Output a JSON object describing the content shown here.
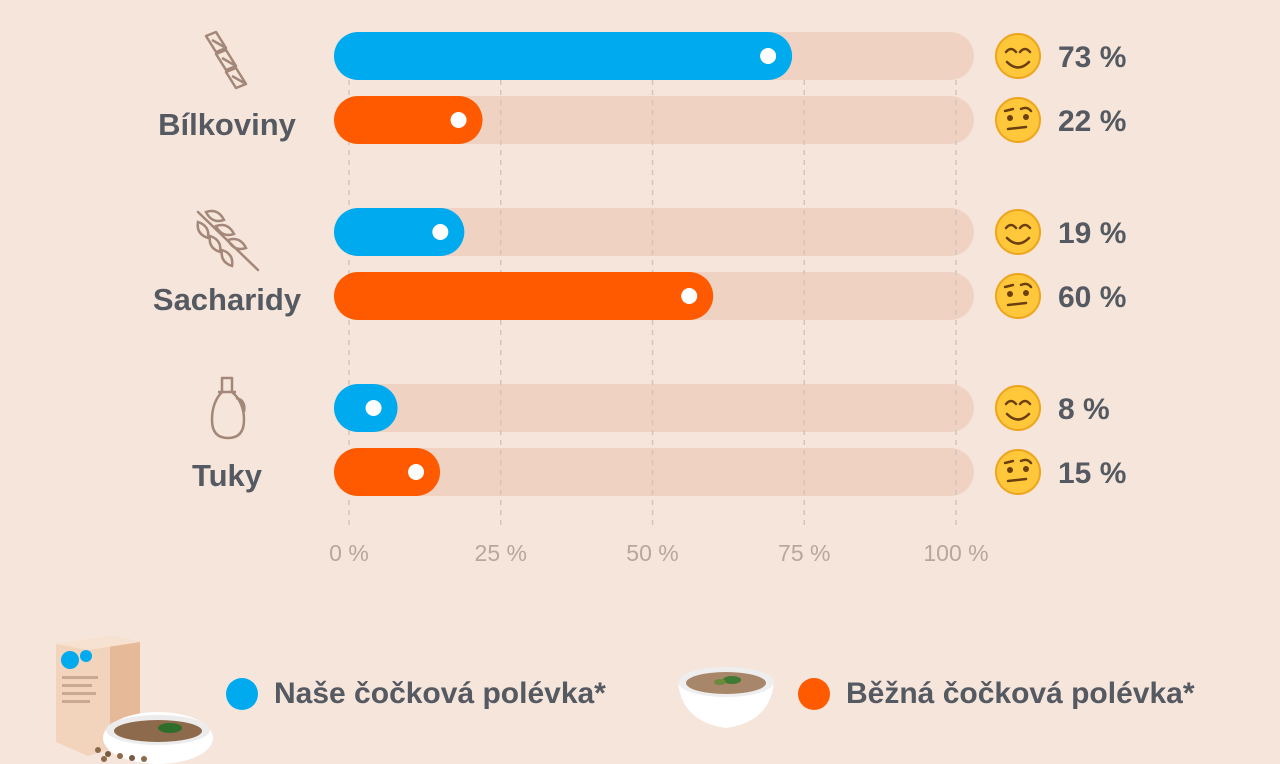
{
  "colors": {
    "ours": "#00aaee",
    "regular": "#ff5a00",
    "track": "#efd2c2",
    "grid": "#d6c4b8",
    "text": "#555a62",
    "tick": "#b8a79d"
  },
  "chart_data": {
    "type": "bar",
    "orientation": "horizontal",
    "categories": [
      "Bílkoviny",
      "Sacharidy",
      "Tuky"
    ],
    "category_icons": [
      "pasta-icon",
      "wheat-icon",
      "oil-bottle-icon"
    ],
    "series": [
      {
        "name": "Naše čočková polévka*",
        "values": [
          73,
          19,
          8
        ],
        "labels": [
          "73 %",
          "19 %",
          "8 %"
        ],
        "emoji": "😊"
      },
      {
        "name": "Běžná čočková polévka*",
        "values": [
          22,
          60,
          15
        ],
        "labels": [
          "22 %",
          "60 %",
          "15 %"
        ],
        "emoji": "🤨"
      }
    ],
    "xlim": [
      0,
      100
    ],
    "ticks": [
      0,
      25,
      50,
      75,
      100
    ],
    "tick_labels": [
      "0 %",
      "25 %",
      "50 %",
      "75 %",
      "100 %"
    ],
    "grid": true,
    "legend": "bottom"
  },
  "legend": {
    "ours_label": "Naše čočková polévka*",
    "regular_label": "Běžná čočková polévka*",
    "ours_image": "soup-package-image",
    "regular_image": "soup-bowl-image"
  }
}
